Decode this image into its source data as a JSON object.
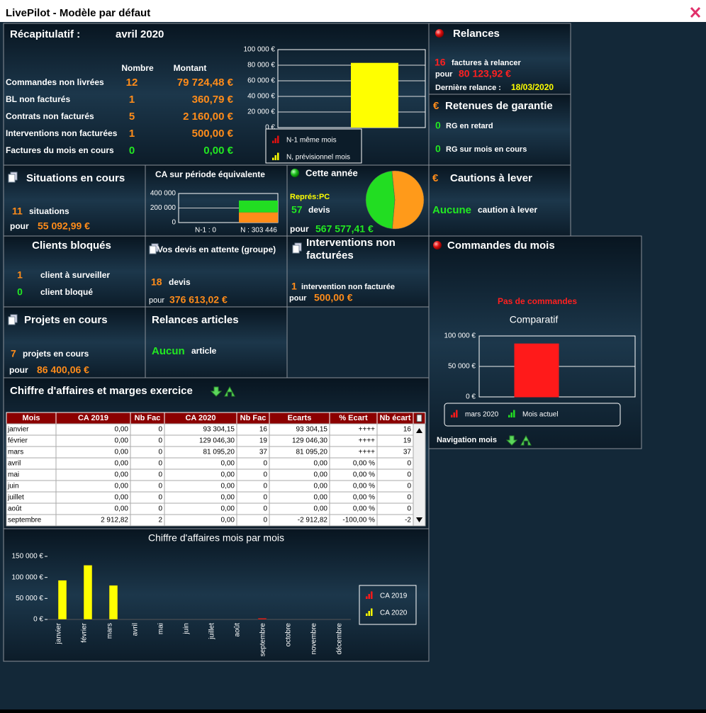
{
  "window": {
    "title": "LivePilot - Modèle par défaut"
  },
  "recap": {
    "title": "Récapitulatif :",
    "period": "avril 2020",
    "headers": [
      "Nombre",
      "Montant"
    ],
    "rows": [
      {
        "label": "Commandes non livrées",
        "count": 12,
        "amount": "79 724,48 €"
      },
      {
        "label": "BL non facturés",
        "count": 1,
        "amount": "360,79 €"
      },
      {
        "label": "Contrats non facturés",
        "count": 5,
        "amount": "2 160,00 €"
      },
      {
        "label": "Interventions non facturées",
        "count": 1,
        "amount": "500,00 €"
      },
      {
        "label": "Factures du mois en cours",
        "count": 0,
        "amount": "0,00 €"
      }
    ],
    "chart": {
      "type": "bar",
      "ylim": [
        0,
        100000
      ],
      "yticks": [
        {
          "value": 0,
          "label": "0 €"
        },
        {
          "value": 20000,
          "label": "20 000 €"
        },
        {
          "value": 40000,
          "label": "40 000 €"
        },
        {
          "value": 60000,
          "label": "60 000 €"
        },
        {
          "value": 80000,
          "label": "80 000 €"
        },
        {
          "value": 100000,
          "label": "100 000 €"
        }
      ],
      "grid": true,
      "series": [
        {
          "name": "N-1 même mois",
          "color": "#e01010",
          "values": [
            0
          ]
        },
        {
          "name": "N, prévisionnel mois",
          "color": "#ffff00",
          "values": [
            83000
          ]
        }
      ]
    }
  },
  "relances": {
    "title": "Relances",
    "count": 16,
    "count_text": "factures à relancer",
    "for": "pour",
    "amount": "80 123,92 €",
    "last_label": "Dernière relance :",
    "last_date": "18/03/2020"
  },
  "retenues": {
    "icon": "€",
    "title": "Retenues de garantie",
    "rows": [
      {
        "count": 0,
        "label": "RG en retard"
      },
      {
        "count": 0,
        "label": "RG sur mois en cours"
      }
    ]
  },
  "situations": {
    "title": "Situations en cours",
    "count": 11,
    "count_text": "situations",
    "for": "pour",
    "amount": "55 092,99 €"
  },
  "ca_period": {
    "title": "CA sur période équivalente",
    "chart": {
      "type": "bar",
      "stacked": true,
      "ylim": [
        0,
        400000
      ],
      "yticks": [
        0,
        {
          "value": 200000,
          "label": "200 000"
        },
        {
          "value": 400000,
          "label": "400 000"
        }
      ],
      "grid": true,
      "categories": [
        "N-1 : 0",
        "N : 303 446"
      ],
      "series": [
        {
          "color": "#ff8c1a",
          "values": [
            0,
            140000
          ]
        },
        {
          "color": "#22dd22",
          "values": [
            0,
            163000
          ]
        }
      ]
    }
  },
  "year": {
    "title": "Cette année",
    "rep": "Représ:PC",
    "count": 57,
    "count_text": "devis",
    "for": "pour",
    "amount": "567 577,41 €",
    "chart": {
      "type": "pie",
      "values": [
        53,
        47
      ],
      "colors": [
        "#ff9a1a",
        "#22dd22"
      ]
    }
  },
  "cautions": {
    "icon": "€",
    "title": "Cautions à lever",
    "value": "Aucune",
    "text": "caution à lever"
  },
  "clients": {
    "title": "Clients bloqués",
    "rows": [
      {
        "count": 1,
        "label": "client à surveiller"
      },
      {
        "count": 0,
        "label": "client bloqué"
      }
    ]
  },
  "devis": {
    "title": "Vos devis en attente (groupe)",
    "count": 18,
    "count_text": "devis",
    "for": "pour",
    "amount": "376 613,02 €"
  },
  "interventions": {
    "title": "Interventions non facturées",
    "count": 1,
    "count_text": "intervention non facturée",
    "for": "pour",
    "amount": "500,00 €"
  },
  "orders": {
    "title": "Commandes du mois",
    "message": "Pas de commandes",
    "footer": "Navigation mois",
    "chart": {
      "type": "bar",
      "title": "Comparatif",
      "ylim": [
        0,
        100000
      ],
      "yticks": [
        {
          "value": 0,
          "label": "0 €"
        },
        {
          "value": 50000,
          "label": "50 000 €"
        },
        {
          "value": 100000,
          "label": "100 000 €"
        }
      ],
      "grid": true,
      "series": [
        {
          "name": "mars 2020",
          "color": "#ff1a1a",
          "values": [
            87000
          ]
        },
        {
          "name": "Mois actuel",
          "color": "#22dd22",
          "values": [
            0
          ]
        }
      ]
    }
  },
  "projects": {
    "title": "Projets en cours",
    "count": 7,
    "count_text": "projets en cours",
    "for": "pour",
    "amount": "86 400,06 €"
  },
  "articles": {
    "title": "Relances articles",
    "value": "Aucun",
    "text": "article"
  },
  "revenue_table": {
    "title": "Chiffre d'affaires et marges exercice",
    "columns": [
      "Mois",
      "CA 2019",
      "Nb Fac",
      "CA 2020",
      "Nb Fac",
      "Ecarts",
      "% Ecart",
      "Nb écart"
    ],
    "rows": [
      [
        "janvier",
        "0,00",
        "0",
        "93 304,15",
        "16",
        "93 304,15",
        "++++",
        "16"
      ],
      [
        "février",
        "0,00",
        "0",
        "129 046,30",
        "19",
        "129 046,30",
        "++++",
        "19"
      ],
      [
        "mars",
        "0,00",
        "0",
        "81 095,20",
        "37",
        "81 095,20",
        "++++",
        "37"
      ],
      [
        "avril",
        "0,00",
        "0",
        "0,00",
        "0",
        "0,00",
        "0,00 %",
        "0"
      ],
      [
        "mai",
        "0,00",
        "0",
        "0,00",
        "0",
        "0,00",
        "0,00 %",
        "0"
      ],
      [
        "juin",
        "0,00",
        "0",
        "0,00",
        "0",
        "0,00",
        "0,00 %",
        "0"
      ],
      [
        "juillet",
        "0,00",
        "0",
        "0,00",
        "0",
        "0,00",
        "0,00 %",
        "0"
      ],
      [
        "août",
        "0,00",
        "0",
        "0,00",
        "0",
        "0,00",
        "0,00 %",
        "0"
      ],
      [
        "septembre",
        "2 912,82",
        "2",
        "0,00",
        "0",
        "-2 912,82",
        "-100,00 %",
        "-2"
      ]
    ]
  },
  "revenue_chart": {
    "type": "bar",
    "title": "Chiffre d'affaires mois par mois",
    "categories": [
      "janvier",
      "février",
      "mars",
      "avril",
      "mai",
      "juin",
      "juillet",
      "août",
      "septembre",
      "octobre",
      "novembre",
      "décembre"
    ],
    "ylim": [
      0,
      150000
    ],
    "yticks": [
      {
        "value": 0,
        "label": "0 €"
      },
      {
        "value": 50000,
        "label": "50 000 €"
      },
      {
        "value": 100000,
        "label": "100 000 €"
      },
      {
        "value": 150000,
        "label": "150 000 €"
      }
    ],
    "series": [
      {
        "name": "CA 2019",
        "color": "#ff1a1a",
        "values": [
          0,
          0,
          0,
          0,
          0,
          0,
          0,
          0,
          2912.82,
          0,
          0,
          0
        ]
      },
      {
        "name": "CA 2020",
        "color": "#ffff00",
        "values": [
          93304.15,
          129046.3,
          81095.2,
          0,
          0,
          0,
          0,
          0,
          0,
          0,
          0,
          0
        ]
      }
    ]
  }
}
